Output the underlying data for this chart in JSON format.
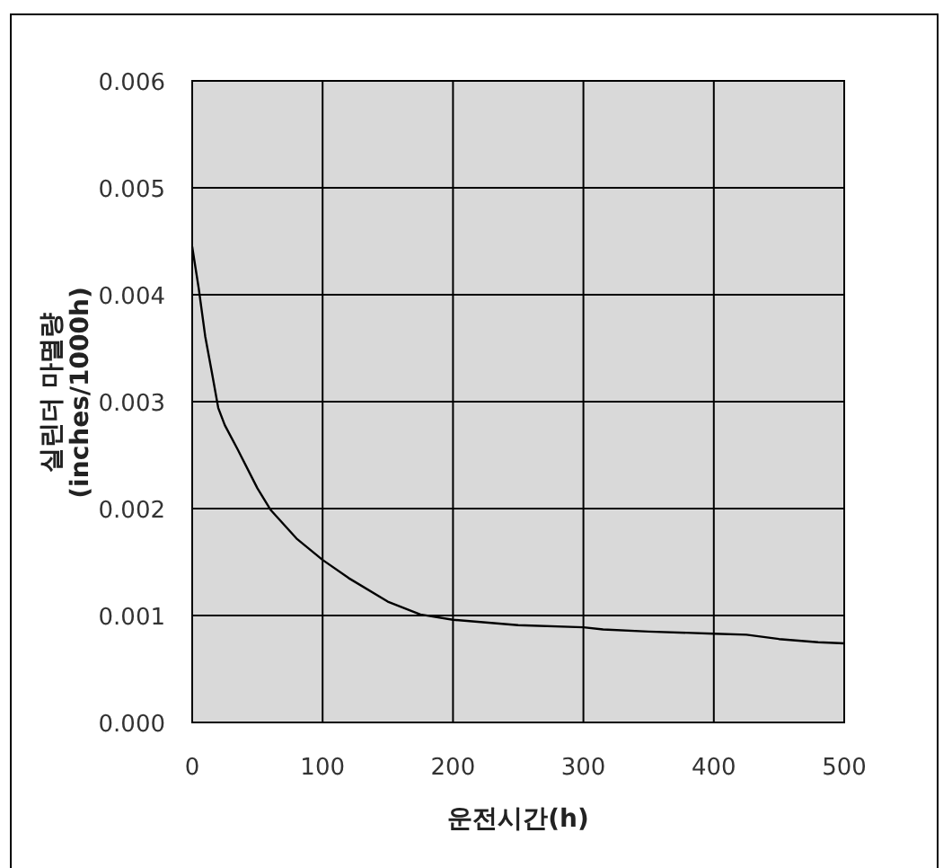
{
  "chart_data": {
    "type": "line",
    "xlabel": "운전시간(h)",
    "ylabel": "실린더 마멸량\n(inches/1000h)",
    "xlim": [
      0,
      500
    ],
    "ylim": [
      0,
      0.006
    ],
    "xticks": [
      0,
      100,
      200,
      300,
      400,
      500
    ],
    "yticks": [
      {
        "value": 0,
        "label": "0.000"
      },
      {
        "value": 0.001,
        "label": "0.001"
      },
      {
        "value": 0.002,
        "label": "0.002"
      },
      {
        "value": 0.003,
        "label": "0.003"
      },
      {
        "value": 0.004,
        "label": "0.004"
      },
      {
        "value": 0.005,
        "label": "0.005"
      },
      {
        "value": 0.006,
        "label": "0.006"
      }
    ],
    "grid": true,
    "marker": "none",
    "line_style": "solid",
    "series": [
      {
        "color": "#000000",
        "x": [
          0,
          5,
          10,
          15,
          20,
          25,
          35,
          50,
          60,
          80,
          100,
          120,
          150,
          175,
          200,
          250,
          300,
          315,
          350,
          400,
          425,
          450,
          480,
          500
        ],
        "values": [
          0.00445,
          0.00406,
          0.00361,
          0.00328,
          0.00294,
          0.00278,
          0.00255,
          0.00219,
          0.00199,
          0.00172,
          0.00152,
          0.00135,
          0.00113,
          0.00101,
          0.00096,
          0.00091,
          0.00089,
          0.00087,
          0.00085,
          0.00083,
          0.00082,
          0.00078,
          0.00075,
          0.00074
        ]
      }
    ]
  }
}
